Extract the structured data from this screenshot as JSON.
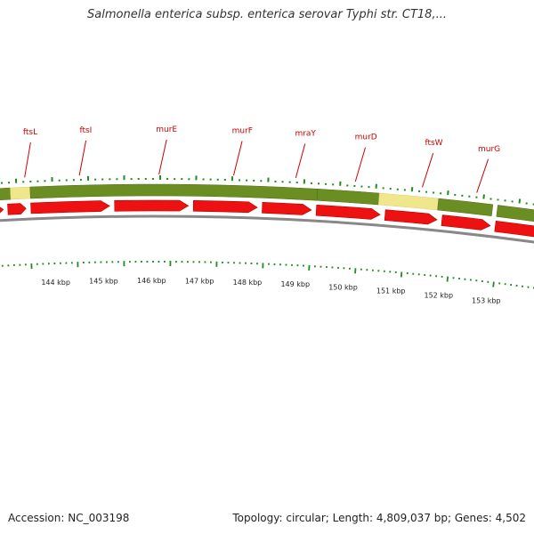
{
  "title": "Salmonella enterica subsp. enterica serovar Typhi str. CT18,...",
  "footer": {
    "accession": "Accession: NC_003198",
    "topology": "Topology: circular; Length: 4,809,037 bp; Genes: 4,502"
  },
  "colors": {
    "gene_label": "#cc0000",
    "cds_band": "#6b8e23",
    "highlight_band": "#f0e68c",
    "cds_arrow": "#ee1111",
    "backbone": "#888888",
    "ticks": "#228b22"
  },
  "gene_labels": [
    "ftsL",
    "ftsI",
    "murE",
    "murF",
    "mraY",
    "murD",
    "ftsW",
    "murG"
  ],
  "kbp_labels": [
    "144 kbp",
    "145 kbp",
    "146 kbp",
    "147 kbp",
    "148 kbp",
    "149 kbp",
    "150 kbp",
    "151 kbp",
    "152 kbp",
    "153 kbp"
  ]
}
